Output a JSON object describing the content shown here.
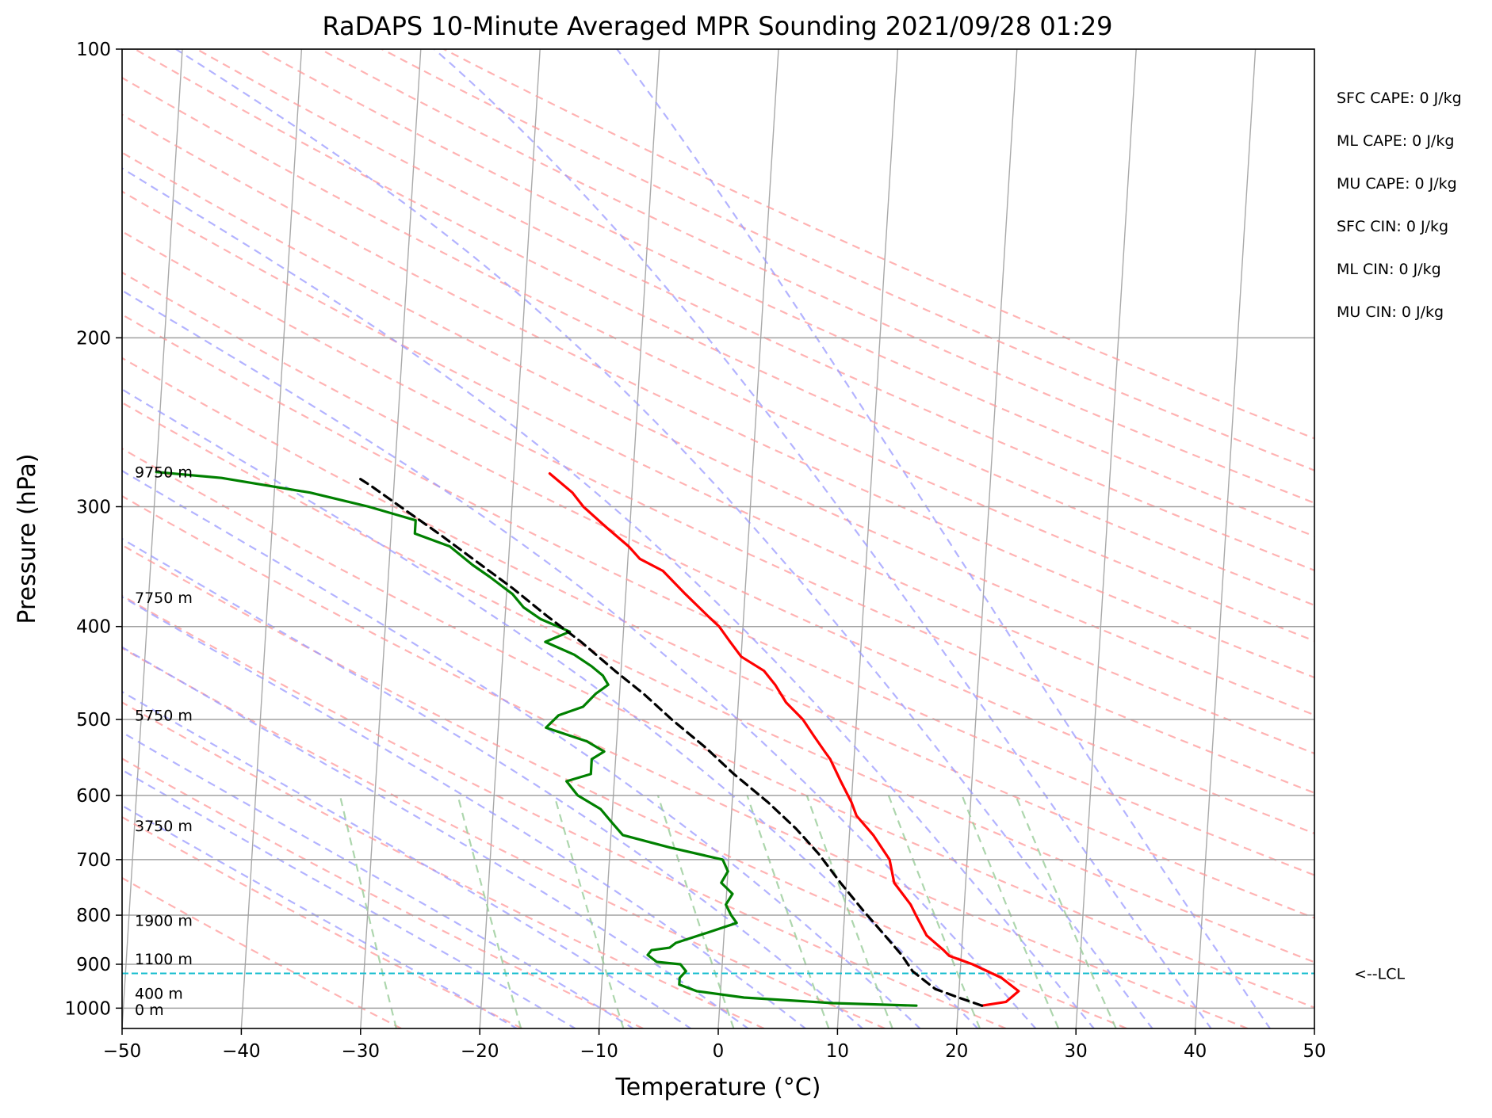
{
  "chart_data": {
    "type": "line",
    "title": "RaDAPS 10-Minute Averaged MPR Sounding 2021/09/28 01:29",
    "xlabel": "Temperature (°C)",
    "ylabel": "Pressure (hPa)",
    "x_ticks": [
      "−50",
      "−40",
      "−30",
      "−20",
      "−10",
      "0",
      "10",
      "20",
      "30",
      "40",
      "50"
    ],
    "y_ticks": [
      "100",
      "200",
      "300",
      "400",
      "500",
      "600",
      "700",
      "800",
      "900",
      "1000"
    ],
    "xlim": [
      -50,
      50
    ],
    "ylim": [
      1050,
      100
    ],
    "y_scale": "log",
    "skew_t": true,
    "grid": true,
    "series": [
      {
        "key": "temperature",
        "color": "#ff0000",
        "points": [
          [
            22,
            994
          ],
          [
            24,
            985
          ],
          [
            25,
            960
          ],
          [
            24.5,
            950
          ],
          [
            23.5,
            930
          ],
          [
            21,
            900
          ],
          [
            19,
            882
          ],
          [
            18.5,
            870
          ],
          [
            18,
            860
          ],
          [
            17,
            840
          ],
          [
            16,
            800
          ],
          [
            15.5,
            780
          ],
          [
            14,
            740
          ],
          [
            13.5,
            700
          ],
          [
            12,
            660
          ],
          [
            10.5,
            630
          ],
          [
            10,
            610
          ],
          [
            9,
            580
          ],
          [
            8,
            550
          ],
          [
            7.5,
            540
          ],
          [
            6.5,
            520
          ],
          [
            5.5,
            500
          ],
          [
            4,
            480
          ],
          [
            3,
            460
          ],
          [
            2,
            445
          ],
          [
            0,
            430
          ],
          [
            -1,
            415
          ],
          [
            -2,
            400
          ],
          [
            -3,
            390
          ],
          [
            -5,
            370
          ],
          [
            -7,
            350
          ],
          [
            -9,
            340
          ],
          [
            -10,
            330
          ],
          [
            -12,
            315
          ],
          [
            -14,
            300
          ],
          [
            -15,
            290
          ],
          [
            -17,
            277
          ]
        ]
      },
      {
        "key": "dewpoint",
        "color": "#008000",
        "points": [
          [
            16.5,
            994
          ],
          [
            9.5,
            988
          ],
          [
            2,
            975
          ],
          [
            -2,
            960
          ],
          [
            -3.5,
            945
          ],
          [
            -3.5,
            930
          ],
          [
            -3,
            915
          ],
          [
            -3.5,
            900
          ],
          [
            -5.5,
            895
          ],
          [
            -6.3,
            880
          ],
          [
            -6,
            870
          ],
          [
            -4.5,
            865
          ],
          [
            -4,
            855
          ],
          [
            -1.5,
            835
          ],
          [
            1,
            815
          ],
          [
            0.5,
            800
          ],
          [
            0,
            780
          ],
          [
            0.5,
            760
          ],
          [
            -0.5,
            740
          ],
          [
            0,
            720
          ],
          [
            -0.5,
            700
          ],
          [
            -5,
            680
          ],
          [
            -9,
            660
          ],
          [
            -10,
            640
          ],
          [
            -11,
            620
          ],
          [
            -13,
            600
          ],
          [
            -14,
            580
          ],
          [
            -12,
            570
          ],
          [
            -12,
            550
          ],
          [
            -11,
            540
          ],
          [
            -12.5,
            527
          ],
          [
            -16,
            510
          ],
          [
            -15,
            495
          ],
          [
            -13,
            485
          ],
          [
            -12,
            470
          ],
          [
            -11,
            460
          ],
          [
            -11.5,
            450
          ],
          [
            -12.5,
            440
          ],
          [
            -14,
            428
          ],
          [
            -16.5,
            415
          ],
          [
            -14.5,
            405
          ],
          [
            -17,
            393
          ],
          [
            -18.5,
            382
          ],
          [
            -19.5,
            370
          ],
          [
            -21.5,
            355
          ],
          [
            -23,
            345
          ],
          [
            -25,
            330
          ],
          [
            -28,
            320
          ],
          [
            -28,
            310
          ],
          [
            -32,
            300
          ],
          [
            -37,
            290
          ],
          [
            -44.5,
            280
          ],
          [
            -50,
            276
          ]
        ]
      },
      {
        "key": "parcel",
        "color": "#000000",
        "points": [
          [
            22,
            994
          ],
          [
            20,
            975
          ],
          [
            18,
            955
          ],
          [
            17,
            935
          ],
          [
            16,
            915
          ],
          [
            15,
            880
          ],
          [
            13.5,
            840
          ],
          [
            11.5,
            790
          ],
          [
            9.5,
            740
          ],
          [
            7.5,
            690
          ],
          [
            5.5,
            650
          ],
          [
            3,
            610
          ],
          [
            0,
            570
          ],
          [
            -2.5,
            535
          ],
          [
            -5.5,
            500
          ],
          [
            -8,
            470
          ],
          [
            -10.5,
            445
          ],
          [
            -13.5,
            415
          ],
          [
            -16.5,
            390
          ],
          [
            -19.5,
            365
          ],
          [
            -23,
            340
          ],
          [
            -26,
            320
          ],
          [
            -29,
            302
          ],
          [
            -32,
            285
          ],
          [
            -33,
            280
          ]
        ]
      }
    ],
    "lcl_hpa": 920,
    "lcl_label": "<--LCL",
    "height_labels": [
      {
        "text": "9750 m",
        "p": 276
      },
      {
        "text": "7750 m",
        "p": 373
      },
      {
        "text": "5750 m",
        "p": 495
      },
      {
        "text": "3750 m",
        "p": 645
      },
      {
        "text": "1900 m",
        "p": 810
      },
      {
        "text": "1100 m",
        "p": 888
      },
      {
        "text": "400 m",
        "p": 965
      },
      {
        "text": "0 m",
        "p": 1003
      }
    ],
    "indices": [
      "SFC CAPE: 0 J/kg",
      "ML CAPE: 0 J/kg",
      "MU CAPE: 0 J/kg",
      "SFC CIN: 0 J/kg",
      "ML CIN: 0 J/kg",
      "MU CIN: 0 J/kg"
    ],
    "reference_lines": {
      "isotherms": "#a9a9a9",
      "dry_adiabats": "#ff9999",
      "moist_adiabats": "#9999ff",
      "mixing_ratio": "#99cc99",
      "lcl_line": "#17becf"
    }
  }
}
